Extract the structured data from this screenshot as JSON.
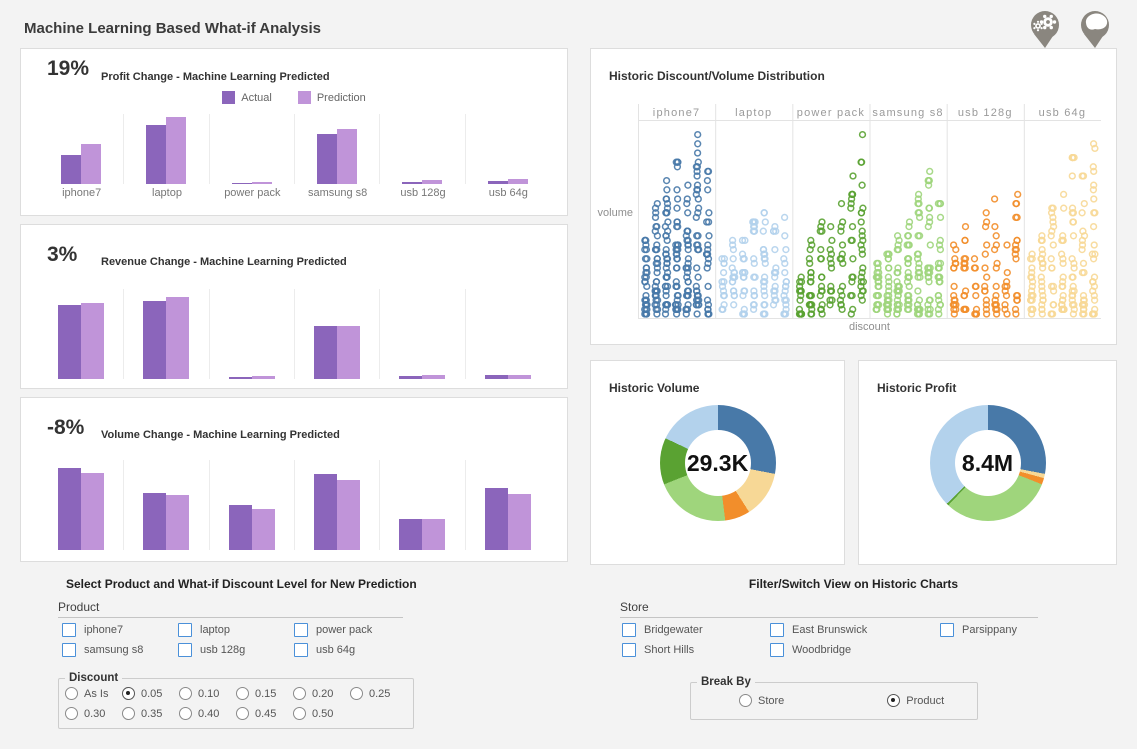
{
  "header": {
    "title": "Machine Learning Based What-if Analysis"
  },
  "icons": {
    "left": "gears-head-icon",
    "right": "brain-head-icon"
  },
  "legend": {
    "actual": "Actual",
    "prediction": "Prediction"
  },
  "palette": {
    "actual": "#8b65bb",
    "prediction": "#c094d9",
    "products": {
      "iphone7": "#4879a8",
      "laptop": "#b3d2ec",
      "power pack": "#5aa232",
      "samsung s8": "#9fd57c",
      "usb 128g": "#f28e2b",
      "usb 64g": "#f7d896"
    },
    "grid": "#ececec",
    "panel_border": "#dddddd",
    "background": "#f3f3f3"
  },
  "chart_data": [
    {
      "id": "profit",
      "type": "bar",
      "kpi": "19%",
      "title": "Profit Change - Machine Learning Predicted",
      "categories": [
        "iphone7",
        "laptop",
        "power pack",
        "samsung s8",
        "usb 128g",
        "usb 64g"
      ],
      "series": [
        {
          "name": "Actual",
          "values": [
            0.41,
            0.84,
            0.02,
            0.71,
            0.03,
            0.04
          ]
        },
        {
          "name": "Prediction",
          "values": [
            0.57,
            0.96,
            0.03,
            0.79,
            0.05,
            0.07
          ]
        }
      ],
      "value_note": "relative bar heights; no numeric axis shown",
      "show_category_labels": true,
      "show_legend": true
    },
    {
      "id": "revenue",
      "type": "bar",
      "kpi": "3%",
      "title": "Revenue Change - Machine Learning Predicted",
      "categories": [
        "iphone7",
        "laptop",
        "power pack",
        "samsung s8",
        "usb 128g",
        "usb 64g"
      ],
      "series": [
        {
          "name": "Actual",
          "values": [
            0.82,
            0.87,
            0.02,
            0.59,
            0.03,
            0.04
          ]
        },
        {
          "name": "Prediction",
          "values": [
            0.84,
            0.91,
            0.03,
            0.59,
            0.04,
            0.04
          ]
        }
      ],
      "value_note": "relative bar heights; no numeric axis shown",
      "show_category_labels": false,
      "show_legend": false
    },
    {
      "id": "volume",
      "type": "bar",
      "kpi": "-8%",
      "title": "Volume Change - Machine Learning Predicted",
      "categories": [
        "iphone7",
        "laptop",
        "power pack",
        "samsung s8",
        "usb 128g",
        "usb 64g"
      ],
      "series": [
        {
          "name": "Actual",
          "values": [
            0.91,
            0.63,
            0.5,
            0.84,
            0.35,
            0.69
          ]
        },
        {
          "name": "Prediction",
          "values": [
            0.86,
            0.61,
            0.45,
            0.78,
            0.34,
            0.62
          ]
        }
      ],
      "value_note": "relative bar heights; no numeric axis shown",
      "show_category_labels": false,
      "show_legend": false
    },
    {
      "id": "scatter",
      "type": "scatter",
      "title": "Historic Discount/Volume Distribution",
      "xlabel": "discount",
      "ylabel": "volume",
      "facets": [
        "iphone7",
        "laptop",
        "power pack",
        "samsung s8",
        "usb 128g",
        "usb 64g"
      ],
      "point_style": "open circles, one vertical strip per historic discount level, volume increases with discount",
      "strips": {
        "iphone7": [
          {
            "h": 0.45,
            "n": 34
          },
          {
            "h": 0.6,
            "n": 36
          },
          {
            "h": 0.75,
            "n": 40
          },
          {
            "h": 0.88,
            "n": 42
          },
          {
            "h": 0.72,
            "n": 34
          },
          {
            "h": 1.0,
            "n": 40
          },
          {
            "h": 0.9,
            "n": 26
          }
        ],
        "laptop": [
          {
            "h": 0.3,
            "n": 16
          },
          {
            "h": 0.4,
            "n": 18
          },
          {
            "h": 0.46,
            "n": 20
          },
          {
            "h": 0.52,
            "n": 20
          },
          {
            "h": 0.6,
            "n": 22
          },
          {
            "h": 0.55,
            "n": 18
          },
          {
            "h": 0.68,
            "n": 20
          }
        ],
        "power pack": [
          {
            "h": 0.2,
            "n": 18
          },
          {
            "h": 0.4,
            "n": 22
          },
          {
            "h": 0.55,
            "n": 18
          },
          {
            "h": 0.5,
            "n": 14
          },
          {
            "h": 0.62,
            "n": 16
          },
          {
            "h": 0.78,
            "n": 18
          },
          {
            "h": 1.0,
            "n": 24
          }
        ],
        "samsung s8": [
          {
            "h": 0.28,
            "n": 22
          },
          {
            "h": 0.36,
            "n": 26
          },
          {
            "h": 0.44,
            "n": 28
          },
          {
            "h": 0.55,
            "n": 28
          },
          {
            "h": 0.68,
            "n": 30
          },
          {
            "h": 0.8,
            "n": 28
          },
          {
            "h": 0.62,
            "n": 26
          }
        ],
        "usb 128g": [
          {
            "h": 0.38,
            "n": 18
          },
          {
            "h": 0.48,
            "n": 16
          },
          {
            "h": 0.32,
            "n": 12
          },
          {
            "h": 0.58,
            "n": 14
          },
          {
            "h": 0.66,
            "n": 16
          },
          {
            "h": 0.42,
            "n": 10
          },
          {
            "h": 0.7,
            "n": 18
          }
        ],
        "usb 64g": [
          {
            "h": 0.34,
            "n": 20
          },
          {
            "h": 0.48,
            "n": 22
          },
          {
            "h": 0.58,
            "n": 20
          },
          {
            "h": 0.72,
            "n": 24
          },
          {
            "h": 0.88,
            "n": 26
          },
          {
            "h": 0.8,
            "n": 24
          },
          {
            "h": 0.95,
            "n": 26
          }
        ]
      }
    },
    {
      "id": "hist-volume",
      "type": "donut",
      "title": "Historic Volume",
      "center_label": "29.3K",
      "slices": [
        {
          "label": "iphone7",
          "pct": 28
        },
        {
          "label": "usb 64g",
          "pct": 13
        },
        {
          "label": "usb 128g",
          "pct": 7
        },
        {
          "label": "samsung s8",
          "pct": 21
        },
        {
          "label": "power pack",
          "pct": 13
        },
        {
          "label": "laptop",
          "pct": 18
        }
      ]
    },
    {
      "id": "hist-profit",
      "type": "donut",
      "title": "Historic Profit",
      "center_label": "8.4M",
      "slices": [
        {
          "label": "iphone7",
          "pct": 28
        },
        {
          "label": "usb 64g",
          "pct": 1.2
        },
        {
          "label": "usb 128g",
          "pct": 1.8
        },
        {
          "label": "samsung s8",
          "pct": 31
        },
        {
          "label": "power pack",
          "pct": 0.6
        },
        {
          "label": "laptop",
          "pct": 37.4
        }
      ]
    }
  ],
  "controls_left": {
    "title": "Select Product and What-if Discount Level for New Prediction",
    "product_group": {
      "label": "Product",
      "options": [
        {
          "label": "iphone7",
          "checked": false
        },
        {
          "label": "laptop",
          "checked": false
        },
        {
          "label": "power pack",
          "checked": false
        },
        {
          "label": "samsung s8",
          "checked": false
        },
        {
          "label": "usb 128g",
          "checked": false
        },
        {
          "label": "usb 64g",
          "checked": false
        }
      ]
    },
    "discount_group": {
      "label": "Discount",
      "options": [
        {
          "label": "As Is",
          "selected": false
        },
        {
          "label": "0.05",
          "selected": true
        },
        {
          "label": "0.10",
          "selected": false
        },
        {
          "label": "0.15",
          "selected": false
        },
        {
          "label": "0.20",
          "selected": false
        },
        {
          "label": "0.25",
          "selected": false
        },
        {
          "label": "0.30",
          "selected": false
        },
        {
          "label": "0.35",
          "selected": false
        },
        {
          "label": "0.40",
          "selected": false
        },
        {
          "label": "0.45",
          "selected": false
        },
        {
          "label": "0.50",
          "selected": false
        }
      ]
    }
  },
  "controls_right": {
    "title": "Filter/Switch View on Historic Charts",
    "store_group": {
      "label": "Store",
      "options": [
        {
          "label": "Bridgewater",
          "checked": false
        },
        {
          "label": "East Brunswick",
          "checked": false
        },
        {
          "label": "Parsippany",
          "checked": false
        },
        {
          "label": "Short Hills",
          "checked": false
        },
        {
          "label": "Woodbridge",
          "checked": false
        }
      ]
    },
    "break_by_group": {
      "label": "Break By",
      "options": [
        {
          "label": "Store",
          "selected": false
        },
        {
          "label": "Product",
          "selected": true
        }
      ]
    }
  }
}
